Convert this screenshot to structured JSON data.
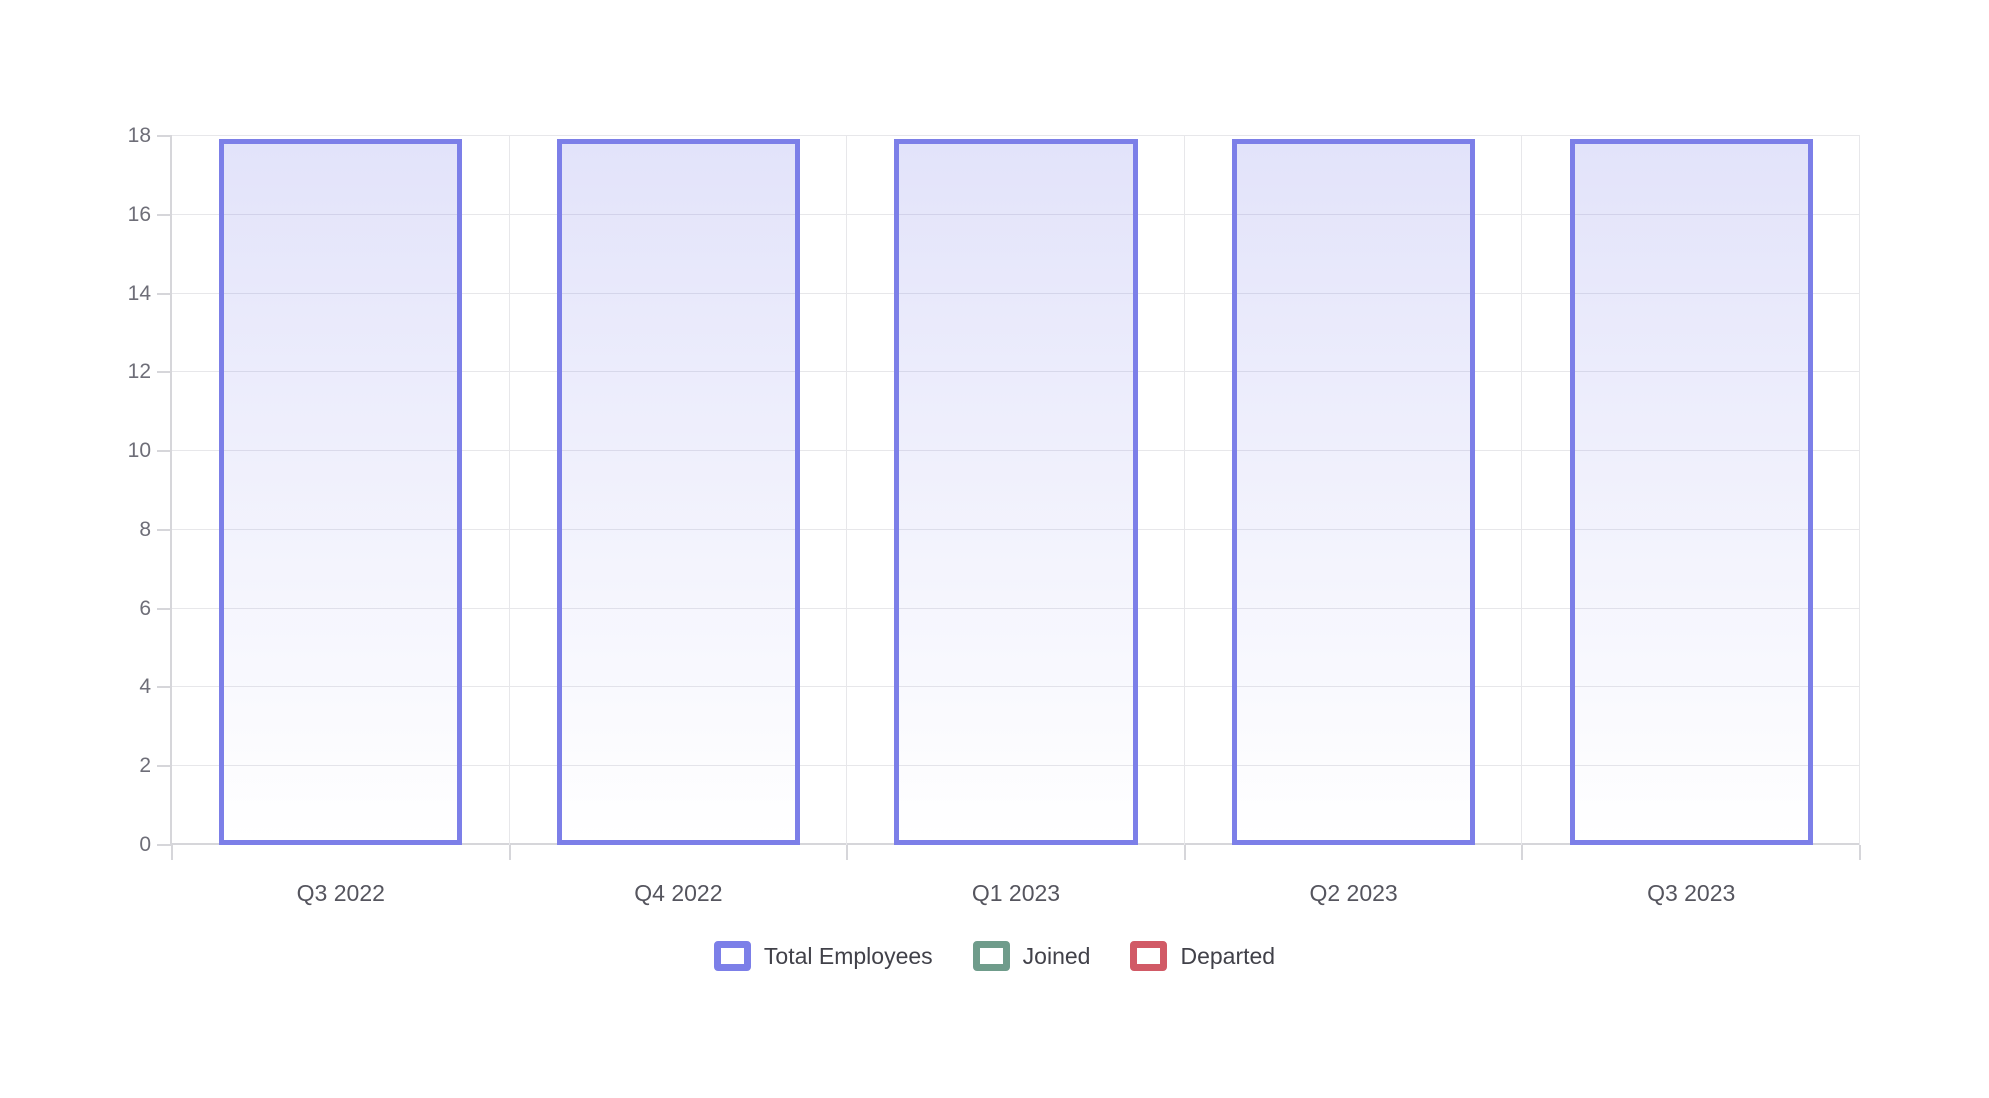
{
  "chart_data": {
    "type": "bar",
    "title": "",
    "categories": [
      "Q3 2022",
      "Q4 2022",
      "Q1 2023",
      "Q2 2023",
      "Q3 2023"
    ],
    "series": [
      {
        "name": "Total Employees",
        "color": "#7c7fe8",
        "values": [
          18,
          18,
          18,
          18,
          18
        ]
      },
      {
        "name": "Joined",
        "color": "#6f9c8b",
        "values": [
          0,
          0,
          0,
          0,
          0
        ]
      },
      {
        "name": "Departed",
        "color": "#d15a66",
        "values": [
          0,
          0,
          0,
          0,
          0
        ]
      }
    ],
    "xlabel": "",
    "ylabel": "",
    "ylim": [
      0,
      18
    ],
    "yticks": [
      0,
      2,
      4,
      6,
      8,
      10,
      12,
      14,
      16,
      18
    ],
    "grid": true,
    "legend_position": "bottom"
  },
  "colors": {
    "background": "#ffffff",
    "grid": "#e7e7ea",
    "axis": "#d6d6da",
    "y_label": "#6e6e78",
    "x_label": "#55555e",
    "legend_text": "#414149",
    "bar_fill_top": "rgba(124,127,232,0.22)",
    "bar_fill_bottom": "rgba(124,127,232,0)"
  }
}
